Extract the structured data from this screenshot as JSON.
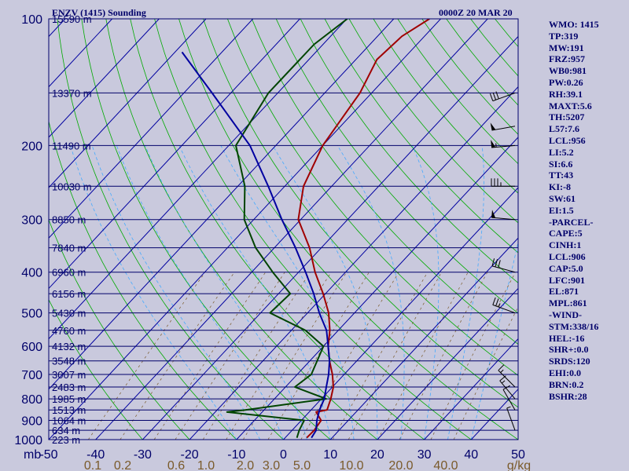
{
  "header": {
    "title": "ENZV (1415) Sounding",
    "datetime": "0000Z 20 MAR 20"
  },
  "colors": {
    "background": "#c9c9dd",
    "temperature": "#a00000",
    "dewpoint": "#004400",
    "parcel": "#0000a0",
    "isobar": "#00006a",
    "isotherm": "#0000a0",
    "dry_adiabat": "#00aa00",
    "moist_adiabat": "#44aaff",
    "mixing_ratio": "#7a5a2a",
    "text": "#00006a",
    "bottom_label": "#7a5a2a"
  },
  "indices": [
    "WMO: 1415",
    "TP:319",
    "MW:191",
    "FRZ:957",
    "WB0:981",
    "PW:0.26",
    "RH:39.1",
    "MAXT:5.6",
    "TH:5207",
    "L57:7.6",
    "LCL:956",
    "LI:5.2",
    "SI:6.6",
    "TT:43",
    "KI:-8",
    "SW:61",
    "EI:1.5",
    "-PARCEL-",
    "CAPE:5",
    "CINH:1",
    "LCL:906",
    "CAP:5.0",
    "LFC:901",
    "EL:871",
    "MPL:861",
    "-WIND-",
    "STM:338/16",
    "HEL:-16",
    "SHR+:0.0",
    "SRDS:120",
    "EHI:0.0",
    "BRN:0.2",
    "BSHR:28"
  ],
  "chart_data": {
    "type": "line",
    "subtype": "skew-T log-P",
    "title": "ENZV (1415) Sounding",
    "xlabel": "",
    "ylabel": "",
    "xlim": [
      -50,
      50
    ],
    "ylim": [
      1000,
      100
    ],
    "y_scale": "log",
    "pressure_ticks": [
      100,
      200,
      300,
      400,
      500,
      600,
      700,
      800,
      900,
      1000
    ],
    "corner_unit": "mb",
    "temperature_ticks": [
      -50,
      -40,
      -30,
      -20,
      -10,
      0,
      10,
      20,
      30,
      40,
      50
    ],
    "mixing_ratio_labels": [
      "0.1",
      "0.2",
      "0.6",
      "1.0",
      "2.0",
      "3.0",
      "5.0",
      "10.0",
      "20.0",
      "40.0"
    ],
    "mixing_ratio_unit": "g/kg",
    "height_labels": [
      {
        "p": 100,
        "text": "15590 m"
      },
      {
        "p": 150,
        "text": "13370 m"
      },
      {
        "p": 200,
        "text": "11490 m"
      },
      {
        "p": 250,
        "text": "10030 m"
      },
      {
        "p": 300,
        "text": "8850 m"
      },
      {
        "p": 350,
        "text": "7840 m"
      },
      {
        "p": 400,
        "text": "6960 m"
      },
      {
        "p": 450,
        "text": "6156 m"
      },
      {
        "p": 500,
        "text": "5430 m"
      },
      {
        "p": 550,
        "text": "4760 m"
      },
      {
        "p": 600,
        "text": "4132 m"
      },
      {
        "p": 650,
        "text": "3548 m"
      },
      {
        "p": 700,
        "text": "3007 m"
      },
      {
        "p": 750,
        "text": "2483 m"
      },
      {
        "p": 800,
        "text": "1985 m"
      },
      {
        "p": 850,
        "text": "1513 m"
      },
      {
        "p": 900,
        "text": "1064 m"
      },
      {
        "p": 950,
        "text": "634 m"
      },
      {
        "p": 1000,
        "text": "223 m"
      }
    ],
    "series": [
      {
        "role": "temperature",
        "points": [
          {
            "p": 100,
            "t": -52.4
          },
          {
            "p": 110,
            "t": -54.8
          },
          {
            "p": 125,
            "t": -55.5
          },
          {
            "p": 150,
            "t": -52.5
          },
          {
            "p": 200,
            "t": -50.0
          },
          {
            "p": 250,
            "t": -46.0
          },
          {
            "p": 300,
            "t": -40.5
          },
          {
            "p": 350,
            "t": -32.5
          },
          {
            "p": 400,
            "t": -26.5
          },
          {
            "p": 450,
            "t": -20.5
          },
          {
            "p": 500,
            "t": -15.5
          },
          {
            "p": 550,
            "t": -11.8
          },
          {
            "p": 600,
            "t": -9.0
          },
          {
            "p": 650,
            "t": -5.8
          },
          {
            "p": 700,
            "t": -2.5
          },
          {
            "p": 750,
            "t": 0.2
          },
          {
            "p": 800,
            "t": 2.0
          },
          {
            "p": 850,
            "t": 3.4
          },
          {
            "p": 860,
            "t": 1.5
          },
          {
            "p": 900,
            "t": 4.2
          },
          {
            "p": 950,
            "t": 4.7
          },
          {
            "p": 990,
            "t": 4.6
          }
        ]
      },
      {
        "role": "dewpoint",
        "points": [
          {
            "p": 100,
            "t": -69.9
          },
          {
            "p": 115,
            "t": -71.9
          },
          {
            "p": 150,
            "t": -72.0
          },
          {
            "p": 200,
            "t": -68.5
          },
          {
            "p": 250,
            "t": -58.5
          },
          {
            "p": 300,
            "t": -52.0
          },
          {
            "p": 350,
            "t": -44.0
          },
          {
            "p": 400,
            "t": -35.5
          },
          {
            "p": 450,
            "t": -27.5
          },
          {
            "p": 500,
            "t": -28.0
          },
          {
            "p": 550,
            "t": -17.0
          },
          {
            "p": 600,
            "t": -10.0
          },
          {
            "p": 700,
            "t": -7.0
          },
          {
            "p": 750,
            "t": -8.0
          },
          {
            "p": 800,
            "t": 1.0
          },
          {
            "p": 850,
            "t": -14.0
          },
          {
            "p": 860,
            "t": -17.5
          },
          {
            "p": 900,
            "t": 0.6
          },
          {
            "p": 950,
            "t": 1.5
          },
          {
            "p": 990,
            "t": 2.5
          }
        ]
      },
      {
        "role": "parcel",
        "points": [
          {
            "p": 120,
            "t": -98.5
          },
          {
            "p": 150,
            "t": -84.0
          },
          {
            "p": 200,
            "t": -65.5
          },
          {
            "p": 250,
            "t": -53.5
          },
          {
            "p": 300,
            "t": -44.0
          },
          {
            "p": 350,
            "t": -35.5
          },
          {
            "p": 400,
            "t": -28.5
          },
          {
            "p": 450,
            "t": -22.5
          },
          {
            "p": 500,
            "t": -17.5
          },
          {
            "p": 550,
            "t": -12.5
          },
          {
            "p": 600,
            "t": -9.0
          },
          {
            "p": 650,
            "t": -5.8
          },
          {
            "p": 700,
            "t": -3.3
          },
          {
            "p": 750,
            "t": -1.3
          },
          {
            "p": 800,
            "t": 0.6
          },
          {
            "p": 850,
            "t": 1.8
          },
          {
            "p": 900,
            "t": 3.3
          },
          {
            "p": 950,
            "t": 5.1
          },
          {
            "p": 990,
            "t": 5.6
          }
        ]
      }
    ],
    "wind_barbs": [
      {
        "p": 150,
        "dir": 250,
        "kt": 30
      },
      {
        "p": 180,
        "dir": 260,
        "kt": 50
      },
      {
        "p": 200,
        "dir": 265,
        "kt": 55
      },
      {
        "p": 250,
        "dir": 270,
        "kt": 35
      },
      {
        "p": 300,
        "dir": 275,
        "kt": 50
      },
      {
        "p": 400,
        "dir": 285,
        "kt": 30
      },
      {
        "p": 500,
        "dir": 290,
        "kt": 25
      },
      {
        "p": 750,
        "dir": 315,
        "kt": 15
      },
      {
        "p": 800,
        "dir": 320,
        "kt": 15
      },
      {
        "p": 850,
        "dir": 330,
        "kt": 10
      },
      {
        "p": 950,
        "dir": 340,
        "kt": 5
      }
    ]
  }
}
